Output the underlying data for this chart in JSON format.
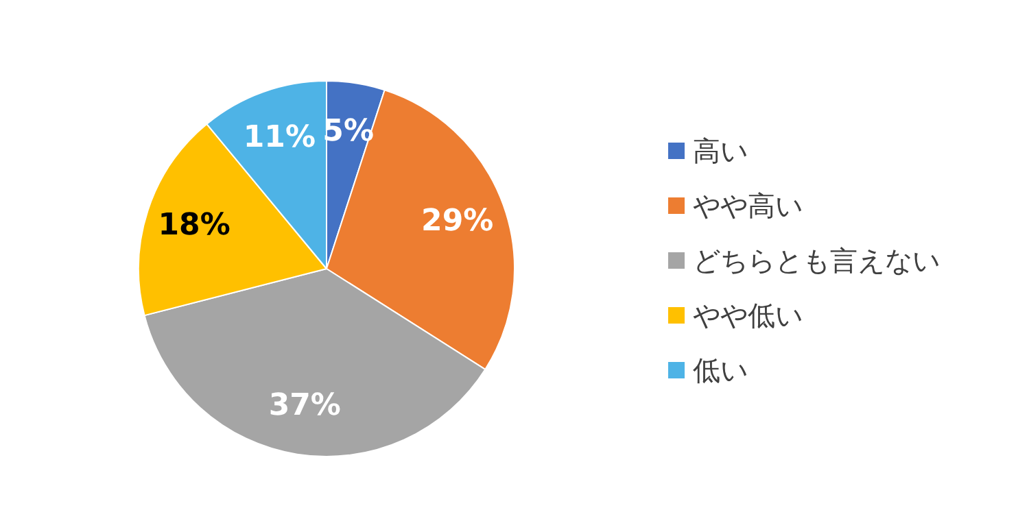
{
  "chart_data": {
    "type": "pie",
    "categories": [
      "高い",
      "やや高い",
      "どちらとも言えない",
      "やや低い",
      "低い"
    ],
    "values": [
      5,
      29,
      37,
      18,
      11
    ],
    "colors": [
      "#4472c4",
      "#ed7d31",
      "#a5a5a5",
      "#ffc000",
      "#4eb3e6"
    ],
    "value_labels": [
      "5%",
      "29%",
      "37%",
      "18%",
      "11%"
    ],
    "legend": "right"
  }
}
